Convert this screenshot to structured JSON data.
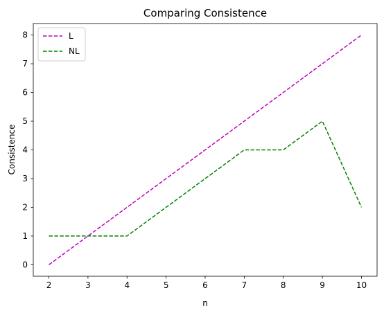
{
  "chart_data": {
    "type": "line",
    "title": "Comparing Consistence",
    "xlabel": "n",
    "ylabel": "Consistence",
    "x": [
      2,
      3,
      4,
      5,
      6,
      7,
      8,
      9,
      10
    ],
    "xticks": [
      2,
      3,
      4,
      5,
      6,
      7,
      8,
      9,
      10
    ],
    "yticks": [
      0,
      1,
      2,
      3,
      4,
      5,
      6,
      7,
      8
    ],
    "xlim": [
      1.6,
      10.4
    ],
    "ylim": [
      -0.4,
      8.4
    ],
    "grid": false,
    "legend_position": "upper-left",
    "series": [
      {
        "name": "L",
        "color": "#bf00bf",
        "style": "dashed",
        "values": [
          0,
          1,
          2,
          3,
          4,
          5,
          6,
          7,
          8
        ]
      },
      {
        "name": "NL",
        "color": "#008000",
        "style": "dashed",
        "values": [
          1,
          1,
          1,
          2,
          3,
          4,
          4,
          5,
          2
        ]
      }
    ]
  }
}
